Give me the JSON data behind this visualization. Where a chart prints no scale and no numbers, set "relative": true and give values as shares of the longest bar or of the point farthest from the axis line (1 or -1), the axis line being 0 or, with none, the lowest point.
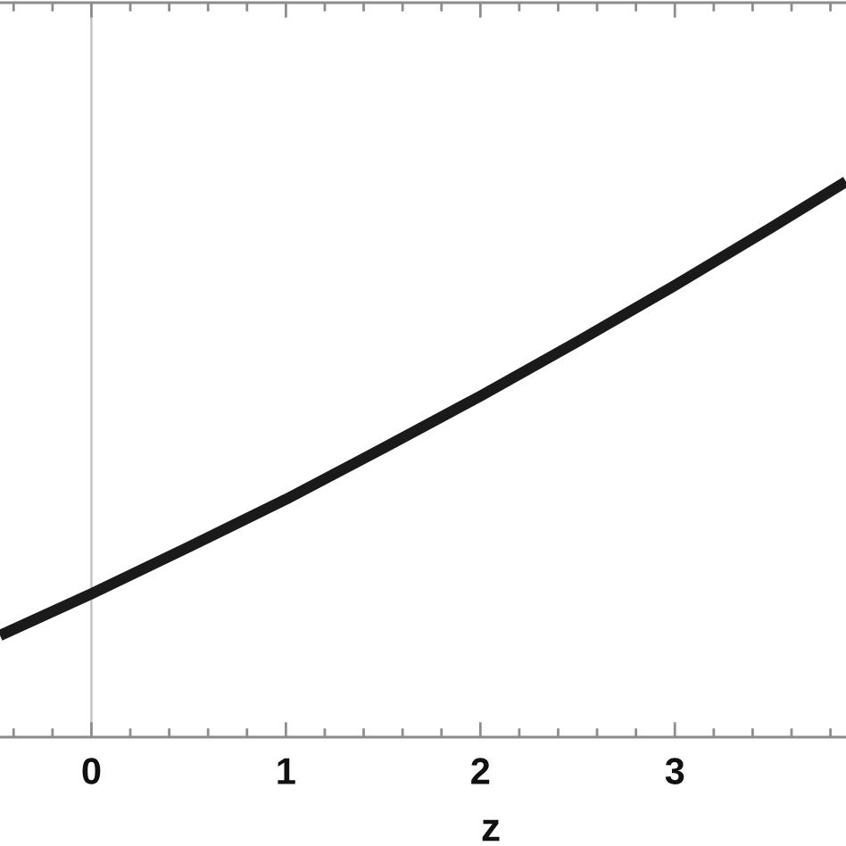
{
  "chart_data": {
    "type": "line",
    "xlabel": "z",
    "relative": true,
    "x": [
      -0.47,
      0,
      0.5,
      1,
      1.5,
      2,
      2.5,
      3,
      3.5,
      3.88
    ],
    "series": [
      {
        "color": "#1a1a1a",
        "values": [
          0.183,
          0.258,
          0.342,
          0.428,
          0.52,
          0.614,
          0.712,
          0.813,
          0.918,
          1.0
        ]
      }
    ],
    "xlim": [
      -0.47,
      3.88
    ],
    "xticks": [
      {
        "value": -0.4,
        "label": null
      },
      {
        "value": -0.2,
        "label": null
      },
      0,
      {
        "value": 0.2,
        "label": null
      },
      {
        "value": 0.4,
        "label": null
      },
      {
        "value": 0.6,
        "label": null
      },
      {
        "value": 0.8,
        "label": null
      },
      1,
      {
        "value": 1.2,
        "label": null
      },
      {
        "value": 1.4,
        "label": null
      },
      {
        "value": 1.6,
        "label": null
      },
      {
        "value": 1.8,
        "label": null
      },
      2,
      {
        "value": 2.2,
        "label": null
      },
      {
        "value": 2.4,
        "label": null
      },
      {
        "value": 2.6,
        "label": null
      },
      {
        "value": 2.8,
        "label": null
      },
      3,
      {
        "value": 3.2,
        "label": null
      },
      {
        "value": 3.4,
        "label": null
      },
      {
        "value": 3.6,
        "label": null
      },
      {
        "value": 3.8,
        "label": null
      }
    ],
    "ref_lines": [
      {
        "axis": "x",
        "value": 0,
        "color": "#c4c4c4"
      }
    ]
  }
}
